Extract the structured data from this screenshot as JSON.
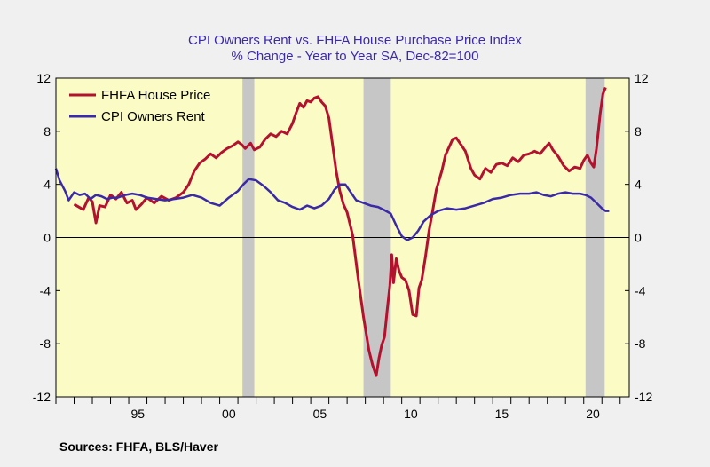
{
  "chart_data": {
    "type": "line",
    "title": "CPI Owners Rent vs. FHFA House Purchase Price Index",
    "subtitle": "% Change - Year to Year    SA, Dec-82=100",
    "source": "Sources:  FHFA, BLS/Haver",
    "ylim": [
      -12,
      12
    ],
    "xlim": [
      1991.0,
      2022.5
    ],
    "y_ticks": [
      {
        "v": 12,
        "label": "12"
      },
      {
        "v": 8,
        "label": "8"
      },
      {
        "v": 4,
        "label": "4"
      },
      {
        "v": 0,
        "label": "0"
      },
      {
        "v": -4,
        "label": "-4"
      },
      {
        "v": -8,
        "label": "-8"
      },
      {
        "v": -12,
        "label": "-12"
      }
    ],
    "x_ticks": [
      {
        "v": 1995,
        "label": "95"
      },
      {
        "v": 2000,
        "label": "00"
      },
      {
        "v": 2005,
        "label": "05"
      },
      {
        "v": 2010,
        "label": "10"
      },
      {
        "v": 2015,
        "label": "15"
      },
      {
        "v": 2020,
        "label": "20"
      }
    ],
    "recessions": [
      [
        2001.25,
        2001.9
      ],
      [
        2007.9,
        2009.4
      ],
      [
        2020.1,
        2021.15
      ]
    ],
    "legend": "top-left",
    "colors": {
      "plot_bg": "#fbfbc6",
      "recession": "#c6c6c6",
      "fhfa": "#b3122e",
      "cpi": "#3a2aa8"
    },
    "series": [
      {
        "name": "FHFA House Price",
        "color": "#b3122e",
        "points": [
          [
            1992.0,
            2.5
          ],
          [
            1992.5,
            2.1
          ],
          [
            1992.8,
            3.0
          ],
          [
            1993.0,
            2.7
          ],
          [
            1993.2,
            1.1
          ],
          [
            1993.4,
            2.4
          ],
          [
            1993.7,
            2.3
          ],
          [
            1994.0,
            3.2
          ],
          [
            1994.3,
            2.9
          ],
          [
            1994.6,
            3.4
          ],
          [
            1994.9,
            2.6
          ],
          [
            1995.2,
            2.8
          ],
          [
            1995.4,
            2.1
          ],
          [
            1995.7,
            2.5
          ],
          [
            1996.0,
            3.0
          ],
          [
            1996.4,
            2.6
          ],
          [
            1996.8,
            3.1
          ],
          [
            1997.2,
            2.8
          ],
          [
            1997.6,
            3.0
          ],
          [
            1998.0,
            3.4
          ],
          [
            1998.3,
            4.0
          ],
          [
            1998.6,
            5.0
          ],
          [
            1998.9,
            5.6
          ],
          [
            1999.2,
            5.9
          ],
          [
            1999.5,
            6.3
          ],
          [
            1999.8,
            6.0
          ],
          [
            2000.1,
            6.4
          ],
          [
            2000.4,
            6.7
          ],
          [
            2000.7,
            6.9
          ],
          [
            2001.0,
            7.2
          ],
          [
            2001.2,
            7.0
          ],
          [
            2001.4,
            6.7
          ],
          [
            2001.7,
            7.1
          ],
          [
            2001.9,
            6.6
          ],
          [
            2002.2,
            6.8
          ],
          [
            2002.5,
            7.4
          ],
          [
            2002.8,
            7.8
          ],
          [
            2003.1,
            7.6
          ],
          [
            2003.4,
            8.0
          ],
          [
            2003.7,
            7.8
          ],
          [
            2004.0,
            8.6
          ],
          [
            2004.2,
            9.4
          ],
          [
            2004.4,
            10.1
          ],
          [
            2004.6,
            9.8
          ],
          [
            2004.8,
            10.3
          ],
          [
            2005.0,
            10.2
          ],
          [
            2005.2,
            10.5
          ],
          [
            2005.4,
            10.6
          ],
          [
            2005.6,
            10.2
          ],
          [
            2005.8,
            9.9
          ],
          [
            2006.0,
            9.0
          ],
          [
            2006.2,
            7.0
          ],
          [
            2006.4,
            5.0
          ],
          [
            2006.6,
            3.5
          ],
          [
            2006.8,
            2.5
          ],
          [
            2007.0,
            1.9
          ],
          [
            2007.3,
            0.2
          ],
          [
            2007.6,
            -3.0
          ],
          [
            2007.9,
            -6.0
          ],
          [
            2008.2,
            -8.5
          ],
          [
            2008.4,
            -9.6
          ],
          [
            2008.6,
            -10.4
          ],
          [
            2008.75,
            -9.1
          ],
          [
            2008.9,
            -8.1
          ],
          [
            2009.05,
            -7.5
          ],
          [
            2009.2,
            -5.5
          ],
          [
            2009.35,
            -3.6
          ],
          [
            2009.45,
            -1.3
          ],
          [
            2009.55,
            -3.4
          ],
          [
            2009.7,
            -1.6
          ],
          [
            2009.85,
            -2.5
          ],
          [
            2010.0,
            -3.0
          ],
          [
            2010.2,
            -3.2
          ],
          [
            2010.4,
            -4.0
          ],
          [
            2010.6,
            -5.8
          ],
          [
            2010.8,
            -5.9
          ],
          [
            2010.95,
            -3.8
          ],
          [
            2011.1,
            -3.2
          ],
          [
            2011.3,
            -1.5
          ],
          [
            2011.5,
            0.5
          ],
          [
            2011.7,
            2.0
          ],
          [
            2011.9,
            3.6
          ],
          [
            2012.2,
            5.0
          ],
          [
            2012.4,
            6.2
          ],
          [
            2012.6,
            6.8
          ],
          [
            2012.8,
            7.4
          ],
          [
            2013.0,
            7.5
          ],
          [
            2013.2,
            7.1
          ],
          [
            2013.5,
            6.5
          ],
          [
            2013.8,
            5.2
          ],
          [
            2014.0,
            4.7
          ],
          [
            2014.3,
            4.4
          ],
          [
            2014.6,
            5.2
          ],
          [
            2014.9,
            4.9
          ],
          [
            2015.2,
            5.5
          ],
          [
            2015.5,
            5.6
          ],
          [
            2015.8,
            5.4
          ],
          [
            2016.1,
            6.0
          ],
          [
            2016.4,
            5.7
          ],
          [
            2016.7,
            6.2
          ],
          [
            2017.0,
            6.3
          ],
          [
            2017.3,
            6.5
          ],
          [
            2017.6,
            6.3
          ],
          [
            2017.9,
            6.8
          ],
          [
            2018.1,
            7.1
          ],
          [
            2018.3,
            6.6
          ],
          [
            2018.6,
            6.1
          ],
          [
            2018.9,
            5.4
          ],
          [
            2019.2,
            5.0
          ],
          [
            2019.5,
            5.3
          ],
          [
            2019.8,
            5.2
          ],
          [
            2020.0,
            5.8
          ],
          [
            2020.2,
            6.2
          ],
          [
            2020.4,
            5.6
          ],
          [
            2020.55,
            5.3
          ],
          [
            2020.7,
            6.7
          ],
          [
            2020.9,
            9.3
          ],
          [
            2021.05,
            10.8
          ],
          [
            2021.2,
            11.3
          ]
        ]
      },
      {
        "name": "CPI Owners Rent",
        "color": "#3a2aa8",
        "points": [
          [
            1991.0,
            5.2
          ],
          [
            1991.2,
            4.3
          ],
          [
            1991.5,
            3.5
          ],
          [
            1991.7,
            2.8
          ],
          [
            1992.0,
            3.4
          ],
          [
            1992.3,
            3.2
          ],
          [
            1992.6,
            3.3
          ],
          [
            1992.9,
            2.9
          ],
          [
            1993.2,
            3.2
          ],
          [
            1993.5,
            3.1
          ],
          [
            1993.8,
            2.9
          ],
          [
            1994.1,
            3.0
          ],
          [
            1994.4,
            3.0
          ],
          [
            1994.8,
            3.2
          ],
          [
            1995.2,
            3.3
          ],
          [
            1995.6,
            3.2
          ],
          [
            1996.0,
            3.0
          ],
          [
            1996.5,
            2.9
          ],
          [
            1997.0,
            2.8
          ],
          [
            1997.5,
            2.9
          ],
          [
            1998.0,
            3.0
          ],
          [
            1998.5,
            3.2
          ],
          [
            1999.0,
            3.0
          ],
          [
            1999.5,
            2.6
          ],
          [
            2000.0,
            2.4
          ],
          [
            2000.5,
            3.0
          ],
          [
            2001.0,
            3.5
          ],
          [
            2001.3,
            4.0
          ],
          [
            2001.6,
            4.4
          ],
          [
            2002.0,
            4.3
          ],
          [
            2002.4,
            3.9
          ],
          [
            2002.8,
            3.4
          ],
          [
            2003.2,
            2.8
          ],
          [
            2003.6,
            2.6
          ],
          [
            2004.0,
            2.3
          ],
          [
            2004.4,
            2.1
          ],
          [
            2004.8,
            2.4
          ],
          [
            2005.2,
            2.2
          ],
          [
            2005.6,
            2.4
          ],
          [
            2006.0,
            2.9
          ],
          [
            2006.3,
            3.6
          ],
          [
            2006.6,
            4.0
          ],
          [
            2006.9,
            4.0
          ],
          [
            2007.2,
            3.4
          ],
          [
            2007.5,
            2.8
          ],
          [
            2007.9,
            2.6
          ],
          [
            2008.3,
            2.4
          ],
          [
            2008.7,
            2.3
          ],
          [
            2009.0,
            2.1
          ],
          [
            2009.4,
            1.8
          ],
          [
            2009.7,
            0.9
          ],
          [
            2010.0,
            0.1
          ],
          [
            2010.3,
            -0.2
          ],
          [
            2010.6,
            0.0
          ],
          [
            2010.9,
            0.5
          ],
          [
            2011.2,
            1.2
          ],
          [
            2011.6,
            1.7
          ],
          [
            2012.0,
            2.0
          ],
          [
            2012.5,
            2.2
          ],
          [
            2013.0,
            2.1
          ],
          [
            2013.5,
            2.2
          ],
          [
            2014.0,
            2.4
          ],
          [
            2014.5,
            2.6
          ],
          [
            2015.0,
            2.9
          ],
          [
            2015.5,
            3.0
          ],
          [
            2016.0,
            3.2
          ],
          [
            2016.5,
            3.3
          ],
          [
            2017.0,
            3.3
          ],
          [
            2017.4,
            3.4
          ],
          [
            2017.8,
            3.2
          ],
          [
            2018.2,
            3.1
          ],
          [
            2018.6,
            3.3
          ],
          [
            2019.0,
            3.4
          ],
          [
            2019.4,
            3.3
          ],
          [
            2019.8,
            3.3
          ],
          [
            2020.1,
            3.2
          ],
          [
            2020.4,
            3.0
          ],
          [
            2020.7,
            2.6
          ],
          [
            2021.0,
            2.2
          ],
          [
            2021.2,
            2.0
          ],
          [
            2021.4,
            2.0
          ]
        ]
      }
    ]
  }
}
